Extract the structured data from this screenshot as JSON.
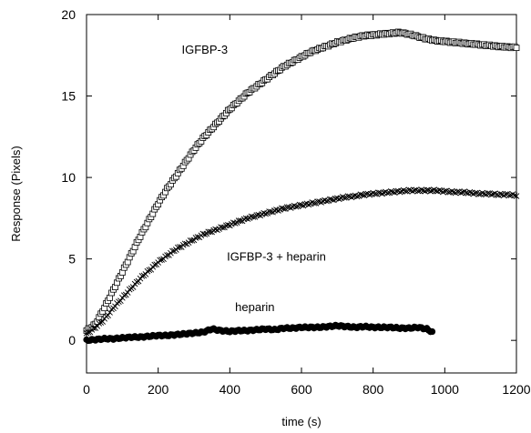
{
  "chart_data": {
    "type": "scatter",
    "title": "",
    "xlabel": "time (s)",
    "ylabel": "Response (Pixels)",
    "xlim": [
      0,
      1200
    ],
    "ylim": [
      -2,
      20
    ],
    "xticks": [
      0,
      200,
      400,
      600,
      800,
      1000,
      1200
    ],
    "yticks": [
      0,
      5,
      10,
      15,
      20
    ],
    "grid": false,
    "legend": "none",
    "annotations": [
      {
        "text": "IGFBP-3",
        "x": 330,
        "y": 17.6
      },
      {
        "text": "IGFBP-3 + heparin",
        "x": 530,
        "y": 4.9
      },
      {
        "text": "heparin",
        "x": 470,
        "y": 1.8
      }
    ],
    "series": [
      {
        "marker": "square",
        "x": [
          0,
          25,
          50,
          75,
          100,
          125,
          150,
          175,
          200,
          225,
          250,
          275,
          300,
          325,
          350,
          375,
          400,
          425,
          450,
          475,
          500,
          525,
          550,
          575,
          600,
          625,
          650,
          675,
          700,
          725,
          750,
          775,
          800,
          825,
          850,
          875,
          900,
          925,
          950,
          975,
          1000,
          1025,
          1050,
          1075,
          1100,
          1125,
          1150,
          1175,
          1200
        ],
        "y": [
          0.6,
          1.0,
          2.0,
          3.1,
          4.2,
          5.3,
          6.4,
          7.4,
          8.4,
          9.3,
          10.1,
          10.9,
          11.7,
          12.4,
          13.0,
          13.6,
          14.2,
          14.7,
          15.2,
          15.6,
          16.0,
          16.4,
          16.8,
          17.1,
          17.4,
          17.7,
          17.9,
          18.1,
          18.3,
          18.45,
          18.6,
          18.7,
          18.75,
          18.8,
          18.85,
          18.9,
          18.8,
          18.65,
          18.5,
          18.4,
          18.35,
          18.3,
          18.25,
          18.2,
          18.15,
          18.1,
          18.05,
          18.0,
          18.0
        ]
      },
      {
        "marker": "x",
        "x": [
          0,
          25,
          50,
          75,
          100,
          125,
          150,
          175,
          200,
          225,
          250,
          275,
          300,
          325,
          350,
          375,
          400,
          425,
          450,
          475,
          500,
          525,
          550,
          575,
          600,
          625,
          650,
          675,
          700,
          725,
          750,
          775,
          800,
          825,
          850,
          875,
          900,
          925,
          950,
          975,
          1000,
          1025,
          1050,
          1075,
          1100,
          1125,
          1150,
          1175,
          1200
        ],
        "y": [
          0.4,
          0.8,
          1.3,
          2.0,
          2.6,
          3.2,
          3.8,
          4.3,
          4.8,
          5.2,
          5.6,
          5.9,
          6.2,
          6.5,
          6.7,
          6.9,
          7.1,
          7.3,
          7.5,
          7.65,
          7.8,
          7.95,
          8.1,
          8.2,
          8.3,
          8.4,
          8.5,
          8.6,
          8.7,
          8.8,
          8.85,
          8.95,
          9.0,
          9.05,
          9.1,
          9.15,
          9.2,
          9.2,
          9.2,
          9.2,
          9.15,
          9.1,
          9.1,
          9.05,
          9.0,
          9.0,
          8.95,
          8.95,
          8.9
        ]
      },
      {
        "marker": "circle",
        "x": [
          0,
          25,
          50,
          75,
          100,
          125,
          150,
          175,
          200,
          225,
          250,
          275,
          300,
          325,
          350,
          375,
          400,
          425,
          450,
          475,
          500,
          525,
          550,
          575,
          600,
          625,
          650,
          675,
          700,
          725,
          750,
          775,
          800,
          825,
          850,
          875,
          900,
          925,
          950,
          965
        ],
        "y": [
          0.0,
          0.05,
          0.1,
          0.1,
          0.15,
          0.2,
          0.2,
          0.25,
          0.3,
          0.3,
          0.35,
          0.4,
          0.45,
          0.5,
          0.7,
          0.6,
          0.55,
          0.6,
          0.6,
          0.65,
          0.7,
          0.65,
          0.75,
          0.75,
          0.8,
          0.8,
          0.8,
          0.85,
          0.9,
          0.85,
          0.8,
          0.85,
          0.8,
          0.8,
          0.8,
          0.75,
          0.75,
          0.8,
          0.7,
          0.5
        ]
      }
    ]
  }
}
